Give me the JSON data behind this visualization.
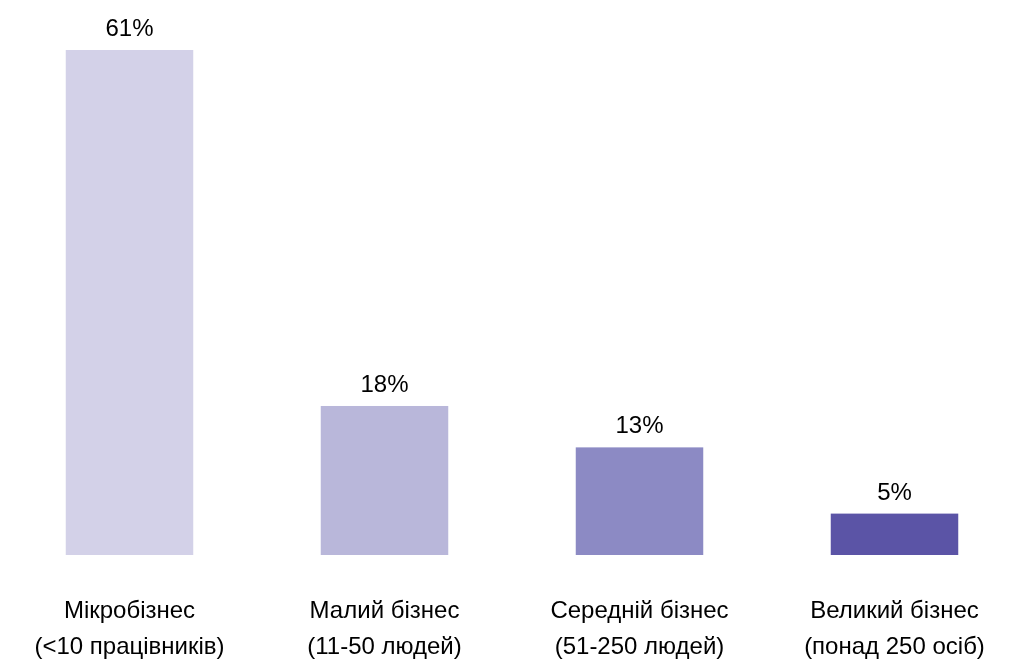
{
  "chart_data": {
    "type": "bar",
    "categories": [
      "Мікробізнес\n(<10 працівників)",
      "Малий бізнес\n(11-50 людей)",
      "Середній бізнес\n(51-250 людей)",
      "Великий бізнес\n(понад 250 осіб)"
    ],
    "values": [
      61,
      18,
      13,
      5
    ],
    "colors": [
      "#d3d1e8",
      "#b9b7da",
      "#8c8ac4",
      "#5b54a6"
    ],
    "value_labels": [
      "61%",
      "18%",
      "13%",
      "5%"
    ]
  }
}
